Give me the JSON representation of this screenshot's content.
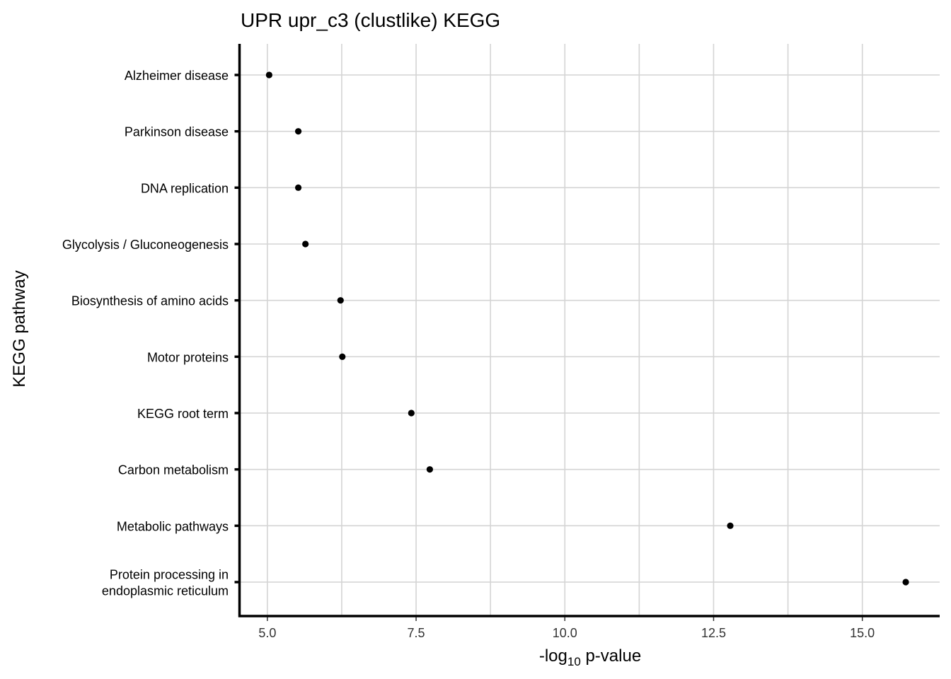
{
  "chart_data": {
    "type": "scatter",
    "title": "UPR upr_c3 (clustlike) KEGG",
    "xlabel": {
      "prefix": "-log",
      "subscript": "10",
      "suffix": " p-value"
    },
    "ylabel": "KEGG pathway",
    "xlim": [
      4.55,
      16.3
    ],
    "x_ticks": [
      5.0,
      7.5,
      10.0,
      12.5,
      15.0
    ],
    "x_tick_labels": [
      "5.0",
      "7.5",
      "10.0",
      "12.5",
      "15.0"
    ],
    "grid": true,
    "point_color": "#000000",
    "categories": [
      [
        "Alzheimer disease"
      ],
      [
        "Parkinson disease"
      ],
      [
        "DNA replication"
      ],
      [
        "Glycolysis / Gluconeogenesis"
      ],
      [
        "Biosynthesis of amino acids"
      ],
      [
        "Motor proteins"
      ],
      [
        "KEGG root term"
      ],
      [
        "Carbon metabolism"
      ],
      [
        "Metabolic pathways"
      ],
      [
        "Protein processing in",
        "endoplasmic reticulum"
      ]
    ],
    "values": [
      5.03,
      5.52,
      5.52,
      5.64,
      6.23,
      6.26,
      7.42,
      7.73,
      12.78,
      15.73
    ]
  }
}
